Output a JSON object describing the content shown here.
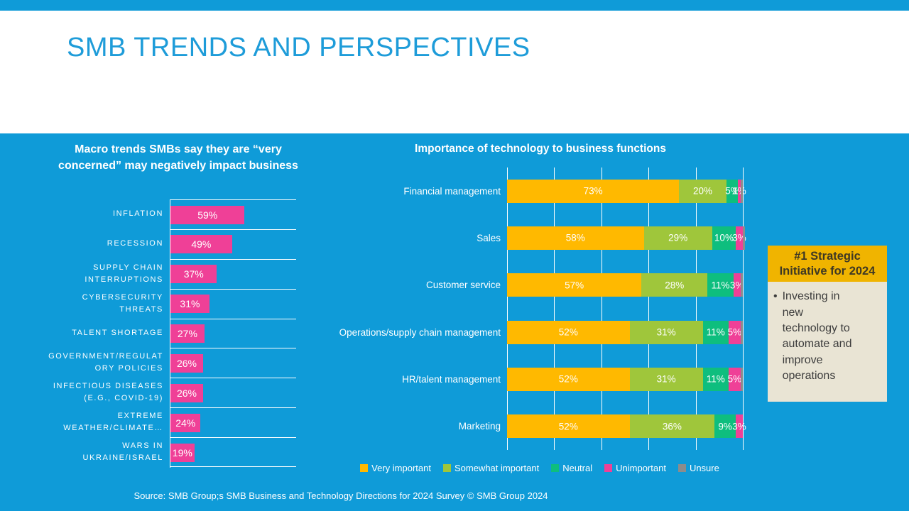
{
  "slide": {
    "title": "SMB TRENDS AND PERSPECTIVES",
    "source": "Source: SMB Group;s SMB Business and Technology Directions for 2024 Survey © SMB Group 2024"
  },
  "colors": {
    "background_blue": "#0F9BD8",
    "title_blue": "#1E9CD9",
    "white": "#FFFFFF",
    "pink": "#EF4097",
    "amber": "#FFB900",
    "yellow_green": "#9FC63B",
    "emerald": "#0EBE7E",
    "gray": "#8C8C8C",
    "callout_header_bg": "#F0B400",
    "callout_body_bg": "#E9E4D4"
  },
  "chart_data": [
    {
      "type": "bar",
      "orientation": "horizontal",
      "title": "Macro trends SMBs say they are “very\nconcerned” may negatively impact business",
      "categories": [
        "INFLATION",
        "RECESSION",
        "SUPPLY CHAIN\nINTERRUPTIONS",
        "CYBERSECURITY\nTHREATS",
        "TALENT SHORTAGE",
        "GOVERNMENT/REGULAT\nORY POLICIES",
        "INFECTIOUS DISEASES\n(E.G., COVID-19)",
        "EXTREME\nWEATHER/CLIMATE…",
        "WARS IN\nUKRAINE/ISRAEL"
      ],
      "values": [
        59,
        49,
        37,
        31,
        27,
        26,
        26,
        24,
        19
      ],
      "labels": [
        "59%",
        "49%",
        "37%",
        "31%",
        "27%",
        "26%",
        "26%",
        "24%",
        "19%"
      ],
      "bar_color": "#EF4097",
      "xlim": [
        0,
        100
      ],
      "grid": "row-separators",
      "legend_position": "none"
    },
    {
      "type": "bar",
      "orientation": "horizontal-stacked",
      "title": "Importance of technology to business functions",
      "categories": [
        "Financial management",
        "Sales",
        "Customer service",
        "Operations/supply chain management",
        "HR/talent management",
        "Marketing"
      ],
      "series": [
        {
          "name": "Very important",
          "color": "#FFB900",
          "values": [
            73,
            58,
            57,
            52,
            52,
            52
          ]
        },
        {
          "name": "Somewhat important",
          "color": "#9FC63B",
          "values": [
            20,
            29,
            28,
            31,
            31,
            36
          ]
        },
        {
          "name": "Neutral",
          "color": "#0EBE7E",
          "values": [
            5,
            10,
            11,
            11,
            11,
            9
          ]
        },
        {
          "name": "Unimportant",
          "color": "#EF4097",
          "values": [
            1,
            3,
            3,
            5,
            5,
            3
          ]
        },
        {
          "name": "Unsure",
          "color": "#8C8C8C",
          "values": [
            1,
            1,
            1,
            1,
            1,
            0
          ]
        }
      ],
      "xlim": [
        0,
        100
      ],
      "grid": "vertical-every-20",
      "legend_position": "bottom"
    }
  ],
  "callout": {
    "header": "#1 Strategic Initiative for 2024",
    "bullet": "•",
    "body": "Investing in\nnew\ntechnology to\nautomate and\nimprove\noperations"
  }
}
